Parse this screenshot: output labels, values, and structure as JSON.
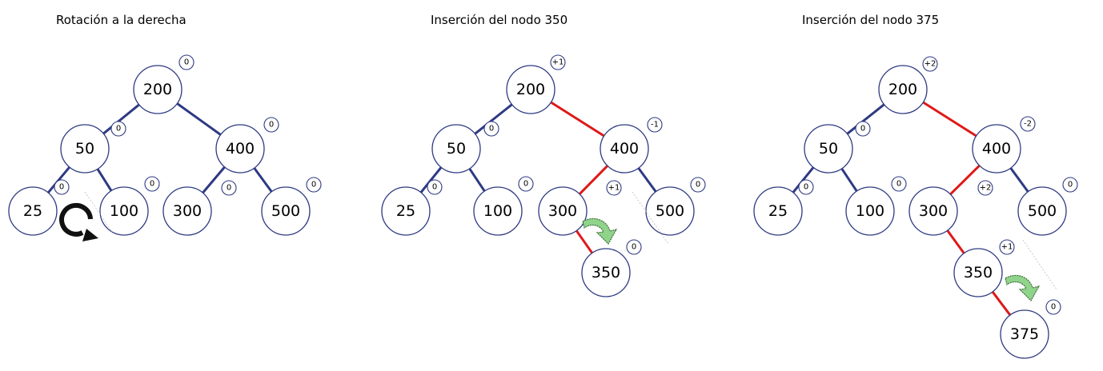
{
  "colors": {
    "blue_edge": "#2e3a82",
    "red_edge": "#e01818",
    "green_arrow": "#8fd48a",
    "node_stroke": "#2e3a82"
  },
  "icons": {
    "rotate": "clockwise-rotate-icon",
    "arrow": "curved-arrow-icon"
  },
  "panels": [
    {
      "title": "Rotación a la derecha",
      "nodes": [
        {
          "id": "n200",
          "label": "200",
          "balance": "0"
        },
        {
          "id": "n50",
          "label": "50",
          "balance": "0"
        },
        {
          "id": "n400",
          "label": "400",
          "balance": "0"
        },
        {
          "id": "n25",
          "label": "25",
          "balance": "0"
        },
        {
          "id": "n100",
          "label": "100",
          "balance": "0"
        },
        {
          "id": "n300",
          "label": "300",
          "balance": "0"
        },
        {
          "id": "n500",
          "label": "500",
          "balance": "0"
        }
      ],
      "edges": [
        {
          "from": "n200",
          "to": "n50",
          "color": "blue"
        },
        {
          "from": "n200",
          "to": "n400",
          "color": "blue"
        },
        {
          "from": "n50",
          "to": "n25",
          "color": "blue"
        },
        {
          "from": "n50",
          "to": "n100",
          "color": "blue"
        },
        {
          "from": "n400",
          "to": "n300",
          "color": "blue"
        },
        {
          "from": "n400",
          "to": "n500",
          "color": "blue"
        }
      ]
    },
    {
      "title": "Inserción del nodo 350",
      "nodes": [
        {
          "id": "n200",
          "label": "200",
          "balance": "+1"
        },
        {
          "id": "n50",
          "label": "50",
          "balance": "0"
        },
        {
          "id": "n400",
          "label": "400",
          "balance": "-1"
        },
        {
          "id": "n25",
          "label": "25",
          "balance": "0"
        },
        {
          "id": "n100",
          "label": "100",
          "balance": "0"
        },
        {
          "id": "n300",
          "label": "300",
          "balance": "+1"
        },
        {
          "id": "n500",
          "label": "500",
          "balance": "0"
        },
        {
          "id": "n350",
          "label": "350",
          "balance": "0"
        }
      ],
      "edges": [
        {
          "from": "n200",
          "to": "n50",
          "color": "blue"
        },
        {
          "from": "n200",
          "to": "n400",
          "color": "red"
        },
        {
          "from": "n50",
          "to": "n25",
          "color": "blue"
        },
        {
          "from": "n50",
          "to": "n100",
          "color": "blue"
        },
        {
          "from": "n400",
          "to": "n300",
          "color": "red"
        },
        {
          "from": "n400",
          "to": "n500",
          "color": "blue"
        },
        {
          "from": "n300",
          "to": "n350",
          "color": "red"
        }
      ]
    },
    {
      "title": "Inserción del nodo 375",
      "nodes": [
        {
          "id": "n200",
          "label": "200",
          "balance": "+2"
        },
        {
          "id": "n50",
          "label": "50",
          "balance": "0"
        },
        {
          "id": "n400",
          "label": "400",
          "balance": "-2"
        },
        {
          "id": "n25",
          "label": "25",
          "balance": "0"
        },
        {
          "id": "n100",
          "label": "100",
          "balance": "0"
        },
        {
          "id": "n300",
          "label": "300",
          "balance": "+2"
        },
        {
          "id": "n500",
          "label": "500",
          "balance": "0"
        },
        {
          "id": "n350",
          "label": "350",
          "balance": "+1"
        },
        {
          "id": "n375",
          "label": "375",
          "balance": "0"
        }
      ],
      "edges": [
        {
          "from": "n200",
          "to": "n50",
          "color": "blue"
        },
        {
          "from": "n200",
          "to": "n400",
          "color": "red"
        },
        {
          "from": "n50",
          "to": "n25",
          "color": "blue"
        },
        {
          "from": "n50",
          "to": "n100",
          "color": "blue"
        },
        {
          "from": "n400",
          "to": "n300",
          "color": "red"
        },
        {
          "from": "n400",
          "to": "n500",
          "color": "blue"
        },
        {
          "from": "n300",
          "to": "n350",
          "color": "red"
        },
        {
          "from": "n350",
          "to": "n375",
          "color": "red"
        }
      ]
    }
  ]
}
